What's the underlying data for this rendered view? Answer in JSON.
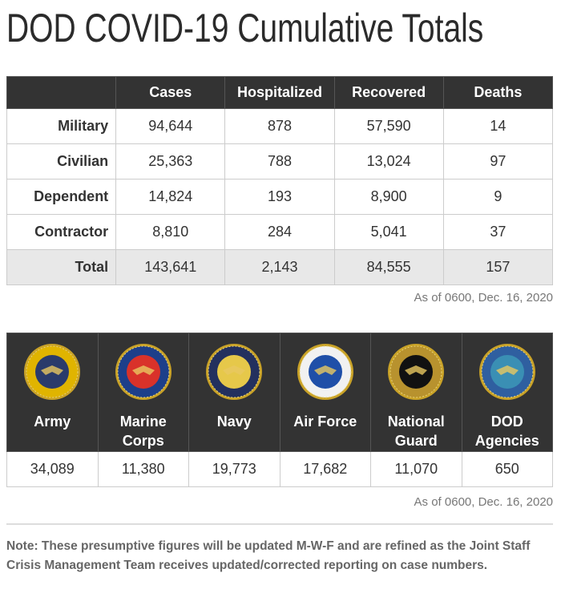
{
  "title": "DOD COVID-19 Cumulative Totals",
  "summary": {
    "headers": [
      "",
      "Cases",
      "Hospitalized",
      "Recovered",
      "Deaths"
    ],
    "rows": [
      {
        "label": "Military",
        "values": [
          "94,644",
          "878",
          "57,590",
          "14"
        ]
      },
      {
        "label": "Civilian",
        "values": [
          "25,363",
          "788",
          "13,024",
          "97"
        ]
      },
      {
        "label": "Dependent",
        "values": [
          "14,824",
          "193",
          "8,900",
          "9"
        ]
      },
      {
        "label": "Contractor",
        "values": [
          "8,810",
          "284",
          "5,041",
          "37"
        ]
      },
      {
        "label": "Total",
        "values": [
          "143,641",
          "2,143",
          "84,555",
          "157"
        ]
      }
    ],
    "as_of": "As of 0600, Dec. 16, 2020"
  },
  "branches": {
    "items": [
      {
        "name": "Army",
        "line2": "",
        "value": "34,089",
        "seal": "army-seal",
        "colors": [
          "#e0b400",
          "#2a3b6b"
        ]
      },
      {
        "name": "Marine",
        "line2": "Corps",
        "value": "11,380",
        "seal": "marine-corps-seal",
        "colors": [
          "#1d3f8a",
          "#d9322a"
        ]
      },
      {
        "name": "Navy",
        "line2": "",
        "value": "19,773",
        "seal": "navy-seal",
        "colors": [
          "#23305e",
          "#e6c84a"
        ]
      },
      {
        "name": "Air Force",
        "line2": "",
        "value": "17,682",
        "seal": "air-force-seal",
        "colors": [
          "#f1f1f1",
          "#1f4fa8"
        ]
      },
      {
        "name": "National",
        "line2": "Guard",
        "value": "11,070",
        "seal": "national-guard-seal",
        "colors": [
          "#b8922e",
          "#111111"
        ]
      },
      {
        "name": "DOD",
        "line2": "Agencies",
        "value": "650",
        "seal": "dod-seal",
        "colors": [
          "#2f5fa0",
          "#3a8fb4"
        ]
      }
    ],
    "as_of": "As of 0600, Dec. 16, 2020"
  },
  "note": "Note: These presumptive figures will be updated M-W-F and are refined as the Joint Staff Crisis Management Team receives updated/corrected reporting on case numbers."
}
